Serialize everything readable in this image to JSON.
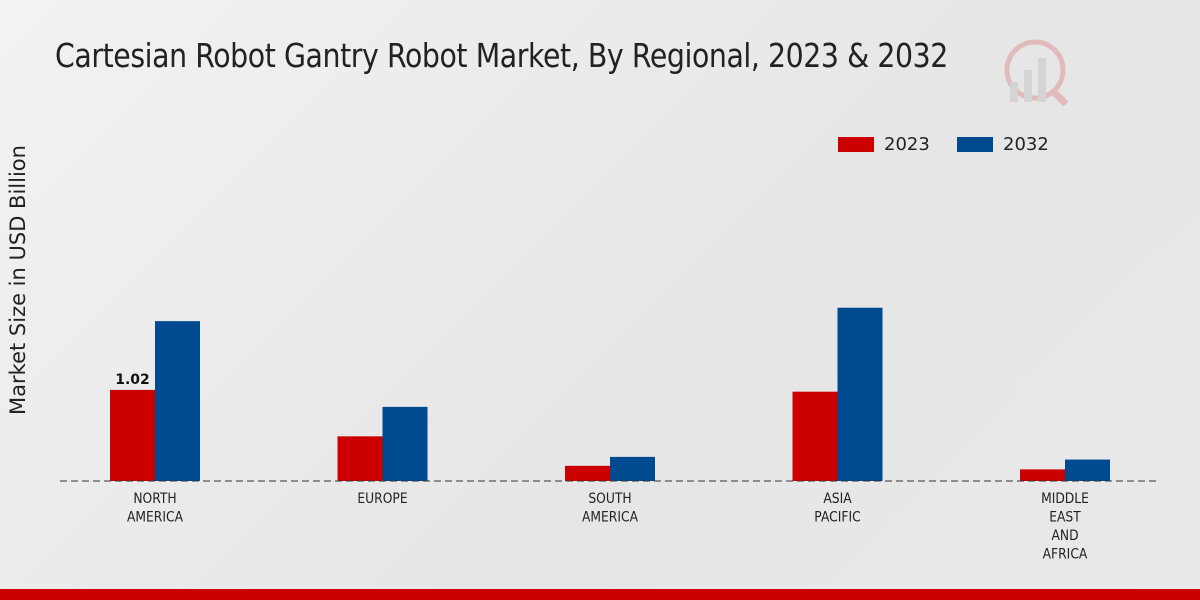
{
  "chart_data": {
    "type": "bar",
    "title": "Cartesian Robot Gantry Robot Market, By Regional, 2023 & 2032",
    "xlabel": "",
    "ylabel": "Market Size in USD Billion",
    "categories": [
      [
        "NORTH",
        "AMERICA"
      ],
      [
        "EUROPE"
      ],
      [
        "SOUTH",
        "AMERICA"
      ],
      [
        "ASIA",
        "PACIFIC"
      ],
      [
        "MIDDLE",
        "EAST",
        "AND",
        "AFRICA"
      ]
    ],
    "series": [
      {
        "name": "2023",
        "color": "#cc0000",
        "values": [
          1.02,
          0.5,
          0.17,
          1.0,
          0.13
        ]
      },
      {
        "name": "2032",
        "color": "#004a8f",
        "values": [
          1.79,
          0.83,
          0.27,
          1.94,
          0.24
        ]
      }
    ],
    "data_labels": [
      {
        "series": 0,
        "index": 0,
        "text": "1.02"
      }
    ],
    "ylim": [
      0,
      3.93
    ],
    "grid": false,
    "legend_position": "top-right"
  }
}
